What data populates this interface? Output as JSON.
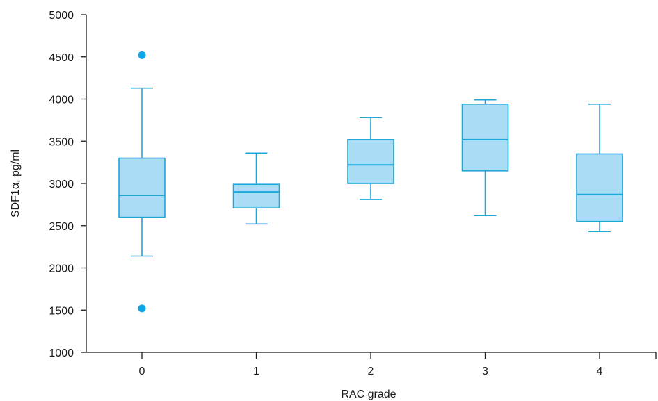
{
  "chart_data": {
    "type": "box",
    "xlabel": "RAC grade",
    "ylabel": "SDF1α, pg/ml",
    "ylim": [
      1000,
      5000
    ],
    "y_ticks": [
      1000,
      1500,
      2000,
      2500,
      3000,
      3500,
      4000,
      4500,
      5000
    ],
    "categories": [
      "0",
      "1",
      "2",
      "3",
      "4"
    ],
    "boxes": [
      {
        "category": "0",
        "min": 2140,
        "q1": 2600,
        "median": 2860,
        "q3": 3300,
        "max": 4130,
        "outliers": [
          4520,
          1520
        ]
      },
      {
        "category": "1",
        "min": 2520,
        "q1": 2710,
        "median": 2900,
        "q3": 2990,
        "max": 3360,
        "outliers": []
      },
      {
        "category": "2",
        "min": 2810,
        "q1": 3000,
        "median": 3220,
        "q3": 3520,
        "max": 3780,
        "outliers": []
      },
      {
        "category": "3",
        "min": 2620,
        "q1": 3150,
        "median": 3520,
        "q3": 3940,
        "max": 3990,
        "outliers": []
      },
      {
        "category": "4",
        "min": 2430,
        "q1": 2550,
        "median": 2870,
        "q3": 3350,
        "max": 3940,
        "outliers": []
      }
    ],
    "grid": false,
    "legend": "none",
    "colors": {
      "box_fill": "#abdcf5",
      "box_stroke": "#1fa6d9",
      "outlier": "#0ea5e6",
      "axis": "#1a1a1a"
    }
  }
}
